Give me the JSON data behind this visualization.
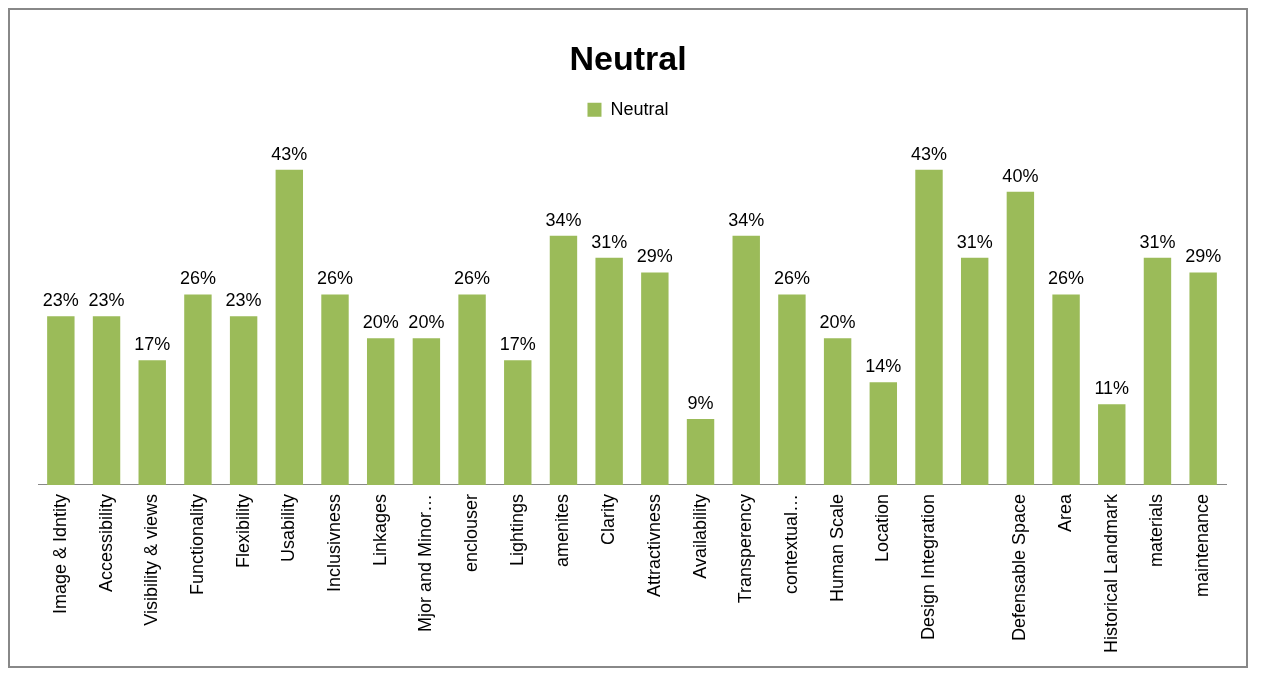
{
  "chart_data": {
    "type": "bar",
    "title": "Neutral",
    "categories": [
      "Image & Idntity",
      "Accessibility",
      "Visibility & views",
      "Functionality",
      "Flexibility",
      "Usability",
      "Inclusivness",
      "Linkages",
      "Mjor and Minor…",
      "enclouser",
      "Lightings",
      "amenites",
      "Clarity",
      "Attractivness",
      "Availability",
      "Transperency",
      "contextual…",
      "Human Scale",
      "Location",
      "Design Integration",
      null,
      "Defensable Space",
      "Area",
      "Historical Landmark",
      "materials",
      "maintenance"
    ],
    "series": [
      {
        "name": "Neutral",
        "color": "#9bbb59",
        "values": [
          23,
          23,
          17,
          26,
          23,
          43,
          26,
          20,
          20,
          26,
          17,
          34,
          31,
          29,
          9,
          34,
          26,
          20,
          14,
          43,
          31,
          40,
          26,
          11,
          31,
          29
        ],
        "value_labels": [
          "23%",
          "23%",
          "17%",
          "26%",
          "23%",
          "43%",
          "26%",
          "20%",
          "20%",
          "26%",
          "17%",
          "34%",
          "31%",
          "29%",
          "9%",
          "34%",
          "26%",
          "20%",
          "14%",
          "43%",
          "31%",
          "40%",
          "26%",
          "11%",
          "31%",
          "29%"
        ]
      }
    ],
    "legend": "top",
    "grid": false
  }
}
